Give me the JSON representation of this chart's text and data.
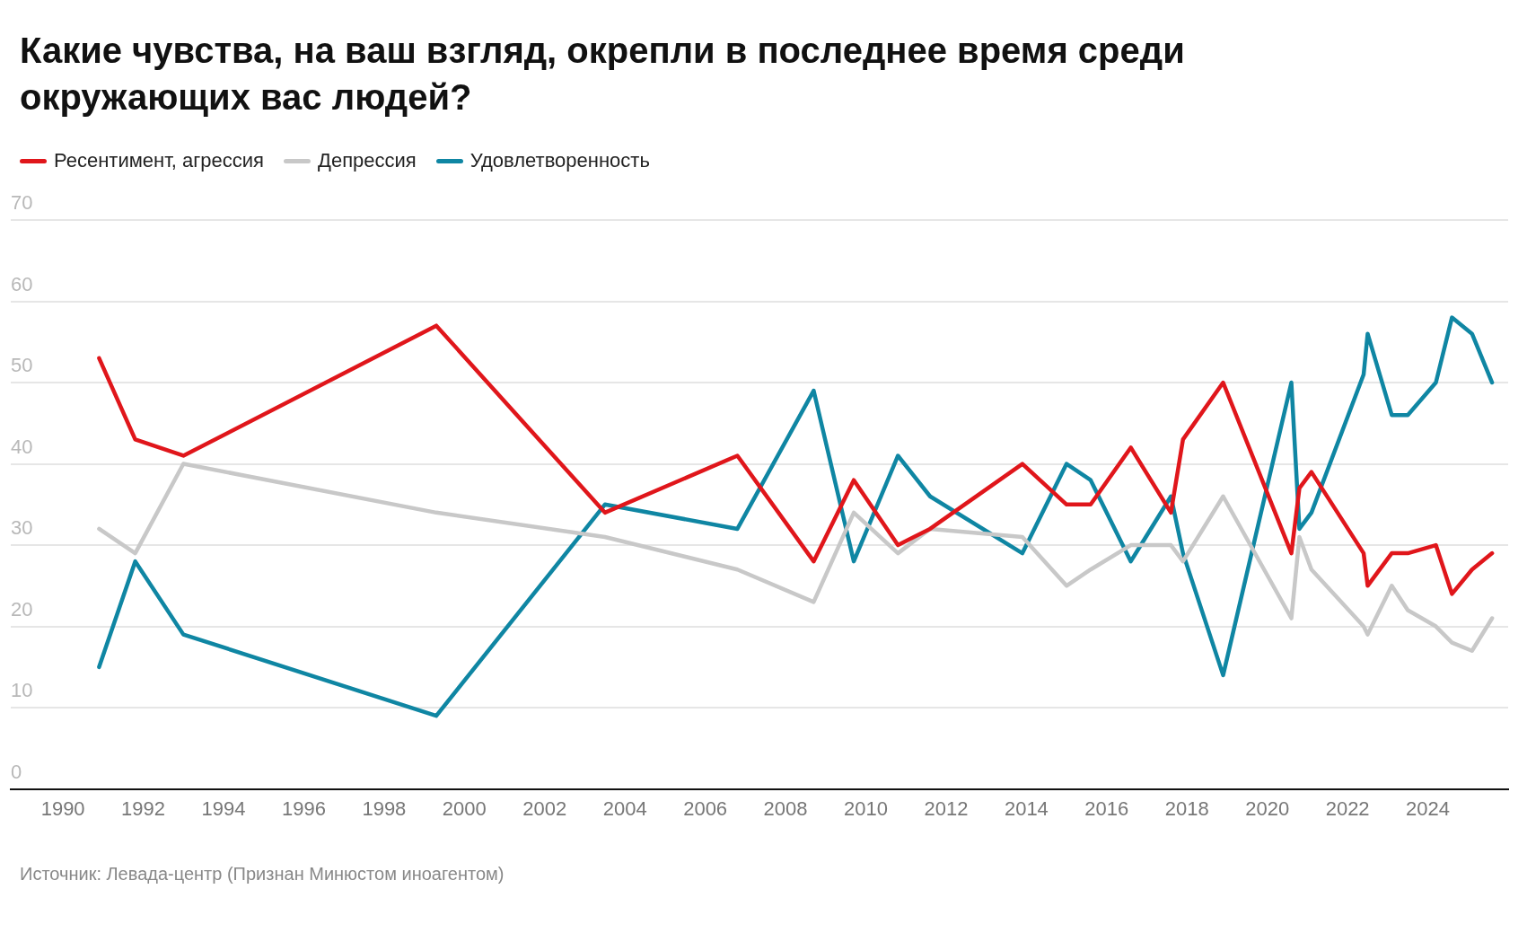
{
  "chart_data": {
    "type": "line",
    "title": "Какие чувства, на ваш взгляд, окрепли в последнее время среди окружающих вас людей?",
    "x": [
      1990.9,
      1991.8,
      1993.0,
      1999.3,
      2003.5,
      2006.8,
      2008.7,
      2009.7,
      2010.8,
      2011.6,
      2013.9,
      2015.0,
      2015.6,
      2016.6,
      2017.6,
      2017.9,
      2018.9,
      2020.6,
      2020.8,
      2021.1,
      2022.4,
      2022.5,
      2023.1,
      2023.5,
      2024.2,
      2024.6,
      2025.1,
      2025.6
    ],
    "series": [
      {
        "name": "Ресентимент, агрессия",
        "color": "#e0161b",
        "values": [
          53,
          43,
          41,
          57,
          34,
          41,
          28,
          38,
          30,
          32,
          40,
          35,
          35,
          42,
          34,
          43,
          50,
          29,
          37,
          39,
          29,
          25,
          29,
          29,
          30,
          24,
          27,
          29
        ]
      },
      {
        "name": "Депрессия",
        "color": "#c8c8c8",
        "values": [
          32,
          29,
          40,
          34,
          31,
          27,
          23,
          34,
          29,
          32,
          31,
          25,
          27,
          30,
          30,
          28,
          36,
          21,
          31,
          27,
          20,
          19,
          25,
          22,
          20,
          18,
          17,
          21
        ]
      },
      {
        "name": "Удовлетворенность",
        "color": "#0f86a3",
        "values": [
          15,
          28,
          19,
          9,
          35,
          32,
          49,
          28,
          41,
          36,
          29,
          40,
          38,
          28,
          36,
          29,
          14,
          50,
          32,
          34,
          51,
          56,
          46,
          46,
          50,
          58,
          56,
          50
        ]
      }
    ],
    "xlim": [
      1988.7,
      2026.0
    ],
    "xticks": [
      1990,
      1992,
      1994,
      1996,
      1998,
      2000,
      2002,
      2004,
      2006,
      2008,
      2010,
      2012,
      2014,
      2016,
      2018,
      2020,
      2022,
      2024
    ],
    "ylim": [
      0,
      70
    ],
    "yticks": [
      0,
      10,
      20,
      30,
      40,
      50,
      60,
      70
    ],
    "grid": "y",
    "legend": "top left",
    "marker": "none",
    "line_style": "solid",
    "annotations": [
      "Источник: Левада-центр (Признан Минюстом иноагентом)"
    ]
  }
}
